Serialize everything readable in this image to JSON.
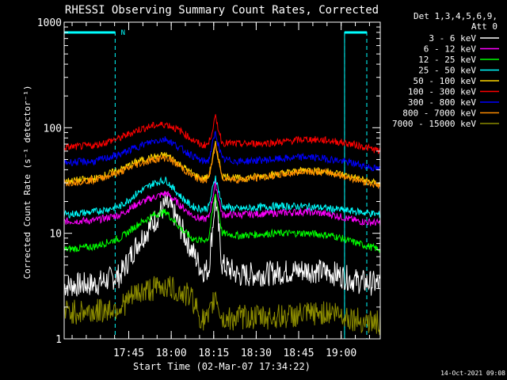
{
  "chart_data": {
    "type": "line",
    "title": "RHESSI Observing Summary Count Rates, Corrected",
    "xlabel": "Start Time (02-Mar-07 17:34:22)",
    "ylabel": "Corrected Count Rate (s⁻¹ detector⁻¹)",
    "y_scale": "log",
    "ylim": [
      1,
      1000
    ],
    "xlim_minutes": [
      17.37,
      19.23
    ],
    "xticks": [
      {
        "label": "17:45",
        "hour": 17.75
      },
      {
        "label": "18:00",
        "hour": 18.0
      },
      {
        "label": "18:15",
        "hour": 18.25
      },
      {
        "label": "18:30",
        "hour": 18.5
      },
      {
        "label": "18:45",
        "hour": 18.75
      },
      {
        "label": "19:00",
        "hour": 19.0
      }
    ],
    "yticks": [
      {
        "label": "1",
        "value": 1
      },
      {
        "label": "10",
        "value": 10
      },
      {
        "label": "100",
        "value": 100
      },
      {
        "label": "1000",
        "value": 1000
      }
    ],
    "legend_header": [
      "Det 1,3,4,5,6,9,",
      "Att 0"
    ],
    "legend_position": "right",
    "attenuator": {
      "solid_segments": [
        [
          17.37,
          17.67
        ],
        [
          19.02,
          19.23
        ]
      ],
      "dashed_lines": [
        17.67,
        19.02,
        19.23
      ],
      "marker_label": "N",
      "marker_hour": 17.69
    },
    "series": [
      {
        "name": "3 - 6 keV",
        "color": "#ffffff",
        "x": [
          17.37,
          17.55,
          17.7,
          17.8,
          17.9,
          17.97,
          18.0,
          18.06,
          18.12,
          18.18,
          18.22,
          18.26,
          18.3,
          18.4,
          18.6,
          18.8,
          18.95,
          19.1,
          19.23
        ],
        "y": [
          3.2,
          3.3,
          4.0,
          8,
          13,
          19,
          17,
          11,
          7,
          4.5,
          4.5,
          22,
          5,
          4,
          4.2,
          4.5,
          4.2,
          3.5,
          3.3
        ]
      },
      {
        "name": "6 - 12 keV",
        "color": "#ff00ff",
        "x": [
          17.37,
          17.55,
          17.7,
          17.8,
          17.9,
          17.97,
          18.0,
          18.06,
          18.12,
          18.18,
          18.22,
          18.26,
          18.3,
          18.4,
          18.6,
          18.8,
          18.95,
          19.1,
          19.23
        ],
        "y": [
          13,
          13.2,
          15,
          19,
          22,
          24,
          22,
          18,
          15,
          13.5,
          14,
          30,
          15,
          15,
          15.5,
          16,
          15,
          13,
          12.5
        ]
      },
      {
        "name": "12 - 25 keV",
        "color": "#00ff00",
        "x": [
          17.37,
          17.55,
          17.7,
          17.8,
          17.9,
          17.97,
          18.0,
          18.06,
          18.12,
          18.18,
          18.22,
          18.26,
          18.3,
          18.4,
          18.6,
          18.8,
          18.95,
          19.1,
          19.23
        ],
        "y": [
          7,
          7.5,
          9,
          12,
          15,
          16,
          14,
          11,
          9,
          8.5,
          9,
          24,
          10,
          9.5,
          10,
          10,
          9.5,
          8,
          7
        ]
      },
      {
        "name": "25 - 50 keV",
        "color": "#00ffff",
        "x": [
          17.37,
          17.55,
          17.7,
          17.8,
          17.9,
          17.97,
          18.0,
          18.06,
          18.12,
          18.18,
          18.22,
          18.26,
          18.3,
          18.4,
          18.6,
          18.8,
          18.95,
          19.1,
          19.23
        ],
        "y": [
          15,
          16,
          18,
          24,
          30,
          32,
          28,
          22,
          18,
          17,
          17.5,
          35,
          18,
          17,
          18,
          18,
          17,
          16,
          15
        ]
      },
      {
        "name": "50 - 100 keV",
        "color": "#ffd700",
        "x": [
          17.37,
          17.55,
          17.7,
          17.8,
          17.9,
          17.97,
          18.0,
          18.06,
          18.12,
          18.18,
          18.22,
          18.26,
          18.3,
          18.4,
          18.6,
          18.8,
          18.95,
          19.1,
          19.23
        ],
        "y": [
          31,
          33,
          40,
          48,
          53,
          55,
          52,
          44,
          37,
          33,
          34,
          70,
          35,
          33,
          36,
          40,
          38,
          33,
          29
        ]
      },
      {
        "name": "100 - 300 keV",
        "color": "#ff0000",
        "x": [
          17.37,
          17.55,
          17.7,
          17.8,
          17.9,
          17.97,
          18.0,
          18.06,
          18.12,
          18.18,
          18.22,
          18.26,
          18.3,
          18.4,
          18.6,
          18.8,
          18.95,
          19.1,
          19.23
        ],
        "y": [
          65,
          68,
          80,
          95,
          105,
          108,
          103,
          92,
          78,
          68,
          70,
          125,
          72,
          70,
          72,
          78,
          75,
          68,
          60
        ]
      },
      {
        "name": "300 - 800 keV",
        "color": "#0000ff",
        "x": [
          17.37,
          17.55,
          17.7,
          17.8,
          17.9,
          17.97,
          18.0,
          18.06,
          18.12,
          18.18,
          18.22,
          18.26,
          18.3,
          18.4,
          18.6,
          18.8,
          18.95,
          19.1,
          19.23
        ],
        "y": [
          47,
          48,
          56,
          66,
          75,
          78,
          73,
          63,
          55,
          48,
          49,
          90,
          50,
          48,
          50,
          53,
          50,
          45,
          40
        ]
      },
      {
        "name": "800 - 7000 keV",
        "color": "#ff8c00",
        "x": [
          17.37,
          17.55,
          17.7,
          17.8,
          17.9,
          17.97,
          18.0,
          18.06,
          18.12,
          18.18,
          18.22,
          18.26,
          18.3,
          18.4,
          18.6,
          18.8,
          18.95,
          19.1,
          19.23
        ],
        "y": [
          30,
          32,
          38,
          45,
          50,
          52,
          49,
          42,
          35,
          32,
          33,
          68,
          34,
          32,
          35,
          39,
          37,
          32,
          28
        ]
      },
      {
        "name": "7000 - 15000 keV",
        "color": "#8b8b00",
        "x": [
          17.37,
          17.55,
          17.7,
          17.8,
          17.9,
          17.97,
          18.0,
          18.06,
          18.12,
          18.18,
          18.22,
          18.26,
          18.3,
          18.4,
          18.6,
          18.8,
          18.95,
          19.1,
          19.23
        ],
        "y": [
          1.8,
          1.8,
          2.0,
          2.7,
          3.0,
          3.2,
          3.0,
          2.7,
          2.5,
          1.5,
          1.5,
          2.7,
          1.5,
          1.6,
          1.6,
          1.7,
          1.8,
          1.5,
          1.4
        ]
      }
    ]
  },
  "footer_text": "14-Oct-2021 09:08"
}
